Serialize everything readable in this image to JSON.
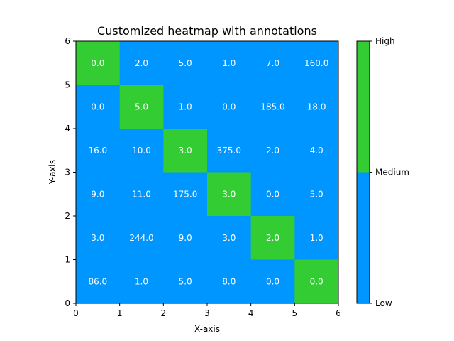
{
  "chart_data": {
    "type": "heatmap",
    "title": "Customized heatmap with annotations",
    "xlabel": "X-axis",
    "ylabel": "Y-axis",
    "xlim": [
      0,
      6
    ],
    "ylim": [
      0,
      6
    ],
    "x_ticks": [
      "0",
      "1",
      "2",
      "3",
      "4",
      "5",
      "6"
    ],
    "y_ticks": [
      "0",
      "1",
      "2",
      "3",
      "4",
      "5",
      "6"
    ],
    "grid": false,
    "rows_top_to_bottom": [
      [
        "0.0",
        "2.0",
        "5.0",
        "1.0",
        "7.0",
        "160.0"
      ],
      [
        "0.0",
        "5.0",
        "1.0",
        "0.0",
        "185.0",
        "18.0"
      ],
      [
        "16.0",
        "10.0",
        "3.0",
        "375.0",
        "2.0",
        "4.0"
      ],
      [
        "9.0",
        "11.0",
        "175.0",
        "3.0",
        "0.0",
        "5.0"
      ],
      [
        "3.0",
        "244.0",
        "9.0",
        "3.0",
        "2.0",
        "1.0"
      ],
      [
        "86.0",
        "1.0",
        "5.0",
        "8.0",
        "0.0",
        "0.0"
      ]
    ],
    "levels_top_to_bottom": [
      [
        1,
        0,
        0,
        0,
        0,
        0
      ],
      [
        0,
        1,
        0,
        0,
        0,
        0
      ],
      [
        0,
        0,
        1,
        0,
        0,
        0
      ],
      [
        0,
        0,
        0,
        1,
        0,
        0
      ],
      [
        0,
        0,
        0,
        0,
        1,
        0
      ],
      [
        0,
        0,
        0,
        0,
        0,
        1
      ]
    ],
    "colors": {
      "low": "#0096ff",
      "high": "#33cc33"
    },
    "colorbar": {
      "placement": "right",
      "labels": [
        "Low",
        "Medium",
        "High"
      ],
      "boundary_fraction": 0.5
    }
  }
}
